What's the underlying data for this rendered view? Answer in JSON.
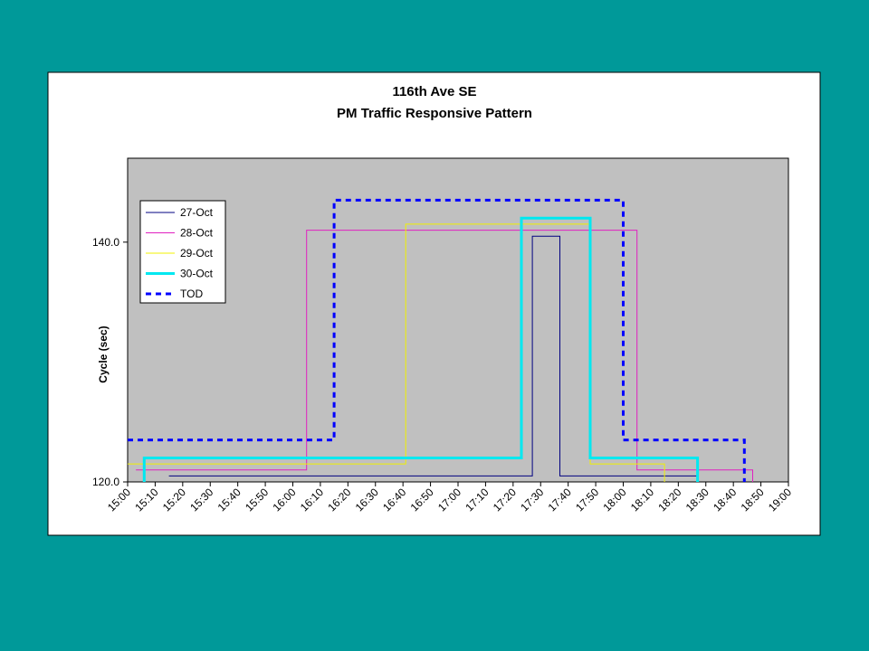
{
  "chart_data": {
    "type": "line",
    "title": "116th Ave SE",
    "subtitle": "PM Traffic Responsive Pattern",
    "y_label": "Cycle (sec)",
    "xlim": [
      "15:00",
      "19:00"
    ],
    "xticks": [
      "15:00",
      "15:10",
      "15:20",
      "15:30",
      "15:40",
      "15:50",
      "16:00",
      "16:10",
      "16:20",
      "16:30",
      "16:40",
      "16:50",
      "17:00",
      "17:10",
      "17:20",
      "17:30",
      "17:40",
      "17:50",
      "18:00",
      "18:10",
      "18:20",
      "18:30",
      "18:40",
      "18:50",
      "19:00"
    ],
    "ylim": [
      120,
      147
    ],
    "yticks": [
      {
        "value": 120,
        "label": "120.0"
      },
      {
        "value": 140,
        "label": "140.0"
      }
    ],
    "series": [
      {
        "name": "27-Oct",
        "color": "#000080",
        "width": 1,
        "dash": false,
        "x": [
          "15:15",
          "17:27",
          "17:27",
          "17:37",
          "17:37",
          "18:27"
        ],
        "values": [
          120.5,
          120.5,
          140.5,
          140.5,
          120.5,
          120.5
        ]
      },
      {
        "name": "28-Oct",
        "color": "#e020c0",
        "width": 1,
        "dash": false,
        "x": [
          "15:03",
          "16:05",
          "16:05",
          "18:05",
          "18:05",
          "18:47",
          "18:47"
        ],
        "values": [
          121,
          121,
          141,
          141,
          121,
          121,
          120
        ]
      },
      {
        "name": "29-Oct",
        "color": "#f0f000",
        "width": 1,
        "dash": false,
        "x": [
          "15:00",
          "16:41",
          "16:41",
          "17:48",
          "17:48",
          "18:15",
          "18:15"
        ],
        "values": [
          121.5,
          121.5,
          141.5,
          141.5,
          121.5,
          121.5,
          120
        ]
      },
      {
        "name": "30-Oct",
        "color": "#00e8f0",
        "width": 3,
        "dash": false,
        "x": [
          "15:06",
          "15:06",
          "17:23",
          "17:23",
          "17:48",
          "17:48",
          "18:27",
          "18:27"
        ],
        "values": [
          120,
          122,
          122,
          142,
          142,
          122,
          122,
          120
        ]
      },
      {
        "name": "TOD",
        "color": "#0000ff",
        "width": 3,
        "dash": true,
        "x": [
          "15:00",
          "16:15",
          "16:15",
          "18:00",
          "18:00",
          "18:44",
          "18:44"
        ],
        "values": [
          123.5,
          123.5,
          143.5,
          143.5,
          123.5,
          123.5,
          120
        ]
      }
    ]
  }
}
